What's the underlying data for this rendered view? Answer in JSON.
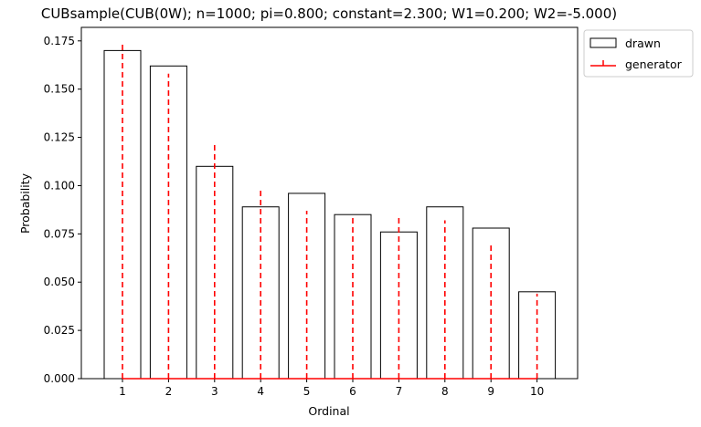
{
  "chart_data": {
    "type": "bar",
    "title": "CUBsample(CUB(0W); n=1000; pi=0.800; constant=2.300; W1=0.200; W2=-5.000)",
    "xlabel": "Ordinal",
    "ylabel": "Probability",
    "categories": [
      "1",
      "2",
      "3",
      "4",
      "5",
      "6",
      "7",
      "8",
      "9",
      "10"
    ],
    "ylim": [
      0,
      0.182
    ],
    "yticks": [
      "0.000",
      "0.025",
      "0.050",
      "0.075",
      "0.100",
      "0.125",
      "0.150",
      "0.175"
    ],
    "ytick_values": [
      0,
      0.025,
      0.05,
      0.075,
      0.1,
      0.125,
      0.15,
      0.175
    ],
    "series": [
      {
        "name": "drawn",
        "style": "bar-outline",
        "color": "#000000",
        "values": [
          0.17,
          0.162,
          0.11,
          0.089,
          0.096,
          0.085,
          0.076,
          0.089,
          0.078,
          0.045
        ]
      },
      {
        "name": "generator",
        "style": "dashed-stem",
        "color": "#ff0000",
        "values": [
          0.173,
          0.158,
          0.121,
          0.098,
          0.087,
          0.085,
          0.084,
          0.082,
          0.07,
          0.044
        ]
      }
    ],
    "legend_position": "outside-top-right",
    "grid": false
  }
}
